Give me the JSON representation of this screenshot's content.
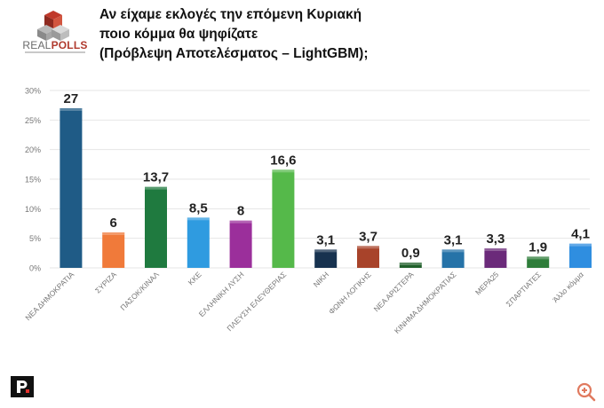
{
  "header": {
    "title_lines": [
      "Αν είχαμε εκλογές την επόμενη Κυριακή",
      "ποιο κόμμα θα ψηφίζατε",
      "(Πρόβλεψη Αποτελέσματος – LightGBM);"
    ],
    "logo_text_a": "REAL",
    "logo_text_b": "POLLS"
  },
  "colors": {
    "grid": "#e6e6e6",
    "axis_text": "#777777",
    "value_text": "#222222"
  },
  "chart_data": {
    "type": "bar",
    "title": "Αν είχαμε εκλογές την επόμενη Κυριακή ποιο κόμμα θα ψηφίζατε (Πρόβλεψη Αποτελέσματος – LightGBM);",
    "categories": [
      "ΝΕΑ ΔΗΜΟΚΡΑΤΙΑ",
      "ΣΥΡΙΖΑ",
      "ΠΑΣΟΚ/ΚΙΝΑΛ",
      "ΚΚΕ",
      "ΕΛΛΗΝΙΚΗ ΛΥΣΗ",
      "ΠΛΕΥΣΗ ΕΛΕΥΘΕΡΙΑΣ",
      "ΝΙΚΗ",
      "ΦΩΝΗ ΛΟΓΙΚΗΣ",
      "ΝΕΑ ΑΡΙΣΤΕΡΑ",
      "ΚΙΝΗΜΑ ΔΗΜΟΚΡΑΤΙΑΣ",
      "ΜΕΡΑ25",
      "ΣΠΑΡΤΙΑΤΕΣ",
      "Άλλο κόμμα"
    ],
    "values": [
      27,
      6,
      13.7,
      8.5,
      8,
      16.6,
      3.1,
      3.7,
      0.9,
      3.1,
      3.3,
      1.9,
      4.1
    ],
    "value_labels": [
      "27",
      "6",
      "13,7",
      "8,5",
      "8",
      "16,6",
      "3,1",
      "3,7",
      "0,9",
      "3,1",
      "3,3",
      "1,9",
      "4,1"
    ],
    "bar_colors": [
      "#1f5b86",
      "#f07a3a",
      "#1f7a3f",
      "#2f9be0",
      "#9b2f9b",
      "#55b94a",
      "#17324f",
      "#a8432a",
      "#1f5f2a",
      "#2673a8",
      "#6b2a7a",
      "#2e7d3a",
      "#2f8ee0"
    ],
    "y_ticks": [
      0,
      5,
      10,
      15,
      20,
      25,
      30
    ],
    "y_tick_labels": [
      "0%",
      "5%",
      "10%",
      "15%",
      "20%",
      "25%",
      "30%"
    ],
    "ylim": [
      0,
      30
    ],
    "xlabel": "",
    "ylabel": "",
    "grid": true
  }
}
